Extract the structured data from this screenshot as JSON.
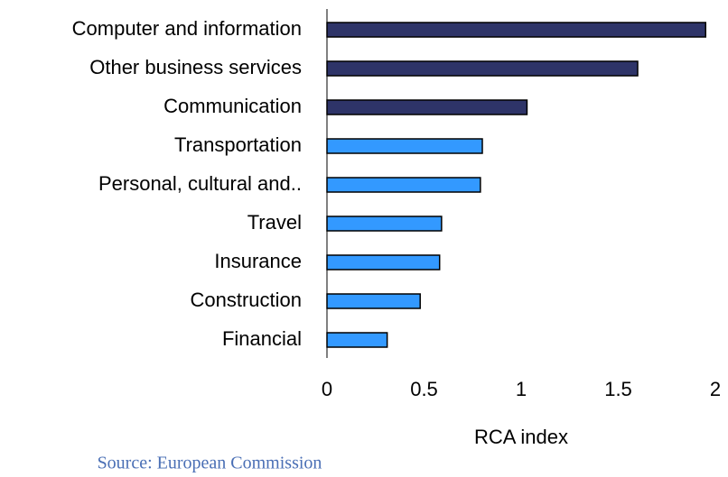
{
  "chart_data": {
    "type": "bar",
    "orientation": "horizontal",
    "categories": [
      "Computer and information",
      "Other business services",
      "Communication",
      "Transportation",
      "Personal, cultural and..",
      "Travel",
      "Insurance",
      "Construction",
      "Financial"
    ],
    "values": [
      1.95,
      1.6,
      1.03,
      0.8,
      0.79,
      0.59,
      0.58,
      0.48,
      0.31
    ],
    "colors": [
      "#2e3468",
      "#2e3468",
      "#2e3468",
      "#3399ff",
      "#3399ff",
      "#3399ff",
      "#3399ff",
      "#3399ff",
      "#3399ff"
    ],
    "xlim": [
      0,
      2
    ],
    "xticks": [
      0,
      0.5,
      1,
      1.5,
      2
    ],
    "grid": false,
    "xlabel": "RCA index",
    "source": "Source: European Commission"
  }
}
